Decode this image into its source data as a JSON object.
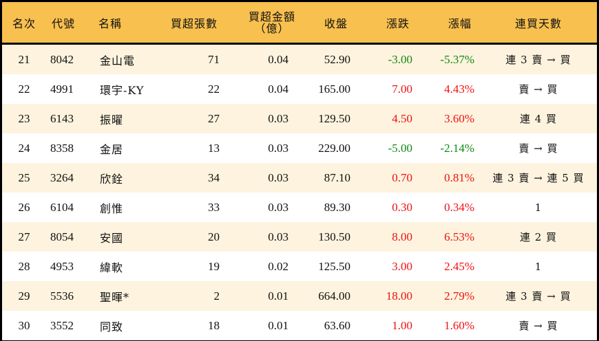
{
  "table": {
    "headers": {
      "rank": "名次",
      "code": "代號",
      "name": "名稱",
      "net_buy_lots": "買超張數",
      "net_buy_amount_line1": "買超金額",
      "net_buy_amount_line2": "（億）",
      "close": "收盤",
      "change": "漲跌",
      "change_pct": "漲幅",
      "consecutive_days": "連買天數"
    },
    "colors": {
      "header_bg": "#F8C04E",
      "row_alt_bg": "#FDF3DE",
      "row_bg": "#FFFFFF",
      "up": "#EE1111",
      "down": "#118811",
      "border": "#000000"
    },
    "rows": [
      {
        "rank": "21",
        "code": "8042",
        "name": "金山電",
        "lots": "71",
        "amount": "0.04",
        "close": "52.90",
        "change": "-3.00",
        "pct": "-5.37%",
        "days": "連 3 賣 → 買",
        "dir": "neg"
      },
      {
        "rank": "22",
        "code": "4991",
        "name": "環宇-KY",
        "lots": "22",
        "amount": "0.04",
        "close": "165.00",
        "change": "7.00",
        "pct": "4.43%",
        "days": "賣 → 買",
        "dir": "pos"
      },
      {
        "rank": "23",
        "code": "6143",
        "name": "振曜",
        "lots": "27",
        "amount": "0.03",
        "close": "129.50",
        "change": "4.50",
        "pct": "3.60%",
        "days": "連 4 買",
        "dir": "pos"
      },
      {
        "rank": "24",
        "code": "8358",
        "name": "金居",
        "lots": "13",
        "amount": "0.03",
        "close": "229.00",
        "change": "-5.00",
        "pct": "-2.14%",
        "days": "賣 → 買",
        "dir": "neg"
      },
      {
        "rank": "25",
        "code": "3264",
        "name": "欣銓",
        "lots": "34",
        "amount": "0.03",
        "close": "87.10",
        "change": "0.70",
        "pct": "0.81%",
        "days": "連 3 賣 → 連 5 買",
        "dir": "pos"
      },
      {
        "rank": "26",
        "code": "6104",
        "name": "創惟",
        "lots": "33",
        "amount": "0.03",
        "close": "89.30",
        "change": "0.30",
        "pct": "0.34%",
        "days": "1",
        "dir": "pos"
      },
      {
        "rank": "27",
        "code": "8054",
        "name": "安國",
        "lots": "20",
        "amount": "0.03",
        "close": "130.50",
        "change": "8.00",
        "pct": "6.53%",
        "days": "連 2 買",
        "dir": "pos"
      },
      {
        "rank": "28",
        "code": "4953",
        "name": "緯軟",
        "lots": "19",
        "amount": "0.02",
        "close": "125.50",
        "change": "3.00",
        "pct": "2.45%",
        "days": "1",
        "dir": "pos"
      },
      {
        "rank": "29",
        "code": "5536",
        "name": "聖暉*",
        "lots": "2",
        "amount": "0.01",
        "close": "664.00",
        "change": "18.00",
        "pct": "2.79%",
        "days": "連 3 賣 → 買",
        "dir": "pos"
      },
      {
        "rank": "30",
        "code": "3552",
        "name": "同致",
        "lots": "18",
        "amount": "0.01",
        "close": "63.60",
        "change": "1.00",
        "pct": "1.60%",
        "days": "賣 → 買",
        "dir": "pos"
      }
    ]
  }
}
